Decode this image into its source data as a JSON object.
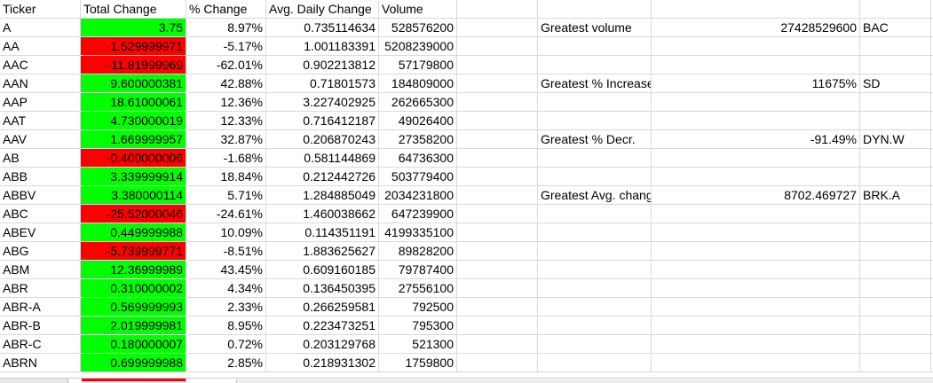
{
  "headers": [
    "Ticker",
    "Total Change",
    "% Change",
    "Avg. Daily Change",
    "Volume"
  ],
  "rows": [
    {
      "ticker": "A",
      "total_change": "3.75",
      "pct_change": "8.97%",
      "avg_daily_change": "0.735114634",
      "volume": "528576200",
      "status": "positive"
    },
    {
      "ticker": "AA",
      "total_change": "-1.529999971",
      "pct_change": "-5.17%",
      "avg_daily_change": "1.001183391",
      "volume": "5208239000",
      "status": "negative"
    },
    {
      "ticker": "AAC",
      "total_change": "-11.81999969",
      "pct_change": "-62.01%",
      "avg_daily_change": "0.902213812",
      "volume": "57179800",
      "status": "negative"
    },
    {
      "ticker": "AAN",
      "total_change": "9.600000381",
      "pct_change": "42.88%",
      "avg_daily_change": "0.71801573",
      "volume": "184809000",
      "status": "positive"
    },
    {
      "ticker": "AAP",
      "total_change": "18.61000061",
      "pct_change": "12.36%",
      "avg_daily_change": "3.227402925",
      "volume": "262665300",
      "status": "positive"
    },
    {
      "ticker": "AAT",
      "total_change": "4.730000019",
      "pct_change": "12.33%",
      "avg_daily_change": "0.716412187",
      "volume": "49026400",
      "status": "positive"
    },
    {
      "ticker": "AAV",
      "total_change": "1.669999957",
      "pct_change": "32.87%",
      "avg_daily_change": "0.206870243",
      "volume": "27358200",
      "status": "positive"
    },
    {
      "ticker": "AB",
      "total_change": "-0.400000006",
      "pct_change": "-1.68%",
      "avg_daily_change": "0.581144869",
      "volume": "64736300",
      "status": "negative"
    },
    {
      "ticker": "ABB",
      "total_change": "3.339999914",
      "pct_change": "18.84%",
      "avg_daily_change": "0.212442726",
      "volume": "503779400",
      "status": "positive"
    },
    {
      "ticker": "ABBV",
      "total_change": "3.380000114",
      "pct_change": "5.71%",
      "avg_daily_change": "1.284885049",
      "volume": "2034231800",
      "status": "positive"
    },
    {
      "ticker": "ABC",
      "total_change": "-25.52000046",
      "pct_change": "-24.61%",
      "avg_daily_change": "1.460038662",
      "volume": "647239900",
      "status": "negative"
    },
    {
      "ticker": "ABEV",
      "total_change": "0.449999988",
      "pct_change": "10.09%",
      "avg_daily_change": "0.114351191",
      "volume": "4199335100",
      "status": "positive"
    },
    {
      "ticker": "ABG",
      "total_change": "-5.739999771",
      "pct_change": "-8.51%",
      "avg_daily_change": "1.883625627",
      "volume": "89828200",
      "status": "negative"
    },
    {
      "ticker": "ABM",
      "total_change": "12.36999989",
      "pct_change": "43.45%",
      "avg_daily_change": "0.609160185",
      "volume": "79787400",
      "status": "positive"
    },
    {
      "ticker": "ABR",
      "total_change": "0.310000002",
      "pct_change": "4.34%",
      "avg_daily_change": "0.136450395",
      "volume": "27556100",
      "status": "positive"
    },
    {
      "ticker": "ABR-A",
      "total_change": "0.569999993",
      "pct_change": "2.33%",
      "avg_daily_change": "0.266259581",
      "volume": "792500",
      "status": "positive"
    },
    {
      "ticker": "ABR-B",
      "total_change": "2.019999981",
      "pct_change": "8.95%",
      "avg_daily_change": "0.223473251",
      "volume": "795300",
      "status": "positive"
    },
    {
      "ticker": "ABR-C",
      "total_change": "0.180000007",
      "pct_change": "0.72%",
      "avg_daily_change": "0.203129768",
      "volume": "521300",
      "status": "positive"
    },
    {
      "ticker": "ABRN",
      "total_change": "0.699999988",
      "pct_change": "2.85%",
      "avg_daily_change": "0.218931302",
      "volume": "1759800",
      "status": "positive"
    }
  ],
  "summary": {
    "greatest_volume": {
      "label": "Greatest volume",
      "value": "27428529600",
      "ticker": "BAC"
    },
    "greatest_increase": {
      "label": "Greatest % Increase",
      "value": "11675%",
      "ticker": "SD"
    },
    "greatest_decrease": {
      "label": "Greatest % Decr.",
      "value": "-91.49%",
      "ticker": "DYN.W"
    },
    "greatest_avg_change": {
      "label": "Greatest Avg. change",
      "value": "8702.469727",
      "ticker": "BRK.A"
    }
  },
  "colors": {
    "positive_fill": "#00ff00",
    "negative_fill": "#ff0000",
    "gridline": "#d9d9d9"
  }
}
